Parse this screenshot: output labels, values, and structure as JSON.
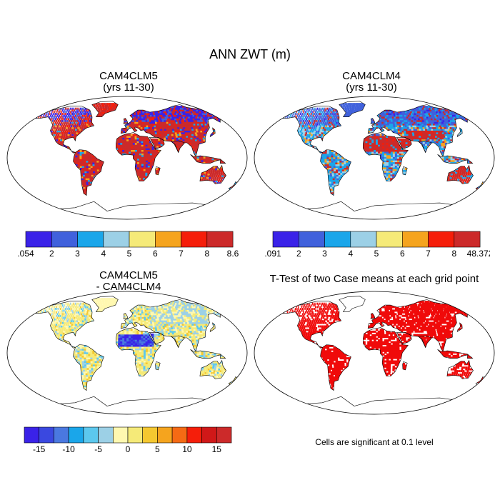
{
  "title": "ANN ZWT (m)",
  "panels": [
    {
      "title": "CAM4CLM5",
      "subtitle": "(yrs 11-30)",
      "colors": [
        "#3a22e8",
        "#4061dc",
        "#1aa6ea",
        "#9cd0e6",
        "#f5ea78",
        "#f5a41e",
        "#f51e0a",
        "#cc2a2a"
      ],
      "colorbar_labels": [
        ".054",
        "2",
        "3",
        "4",
        "5",
        "6",
        "7",
        "8",
        "8.6"
      ]
    },
    {
      "title": "CAM4CLM4",
      "subtitle": "(yrs 11-30)",
      "colors": [
        "#3a22e8",
        "#4061dc",
        "#1aa6ea",
        "#9cd0e6",
        "#f5ea78",
        "#f5a41e",
        "#f51e0a",
        "#cc2a2a"
      ],
      "colorbar_labels": [
        ".091",
        "2",
        "3",
        "4",
        "5",
        "6",
        "7",
        "8",
        "48.372"
      ]
    },
    {
      "title": "CAM4CLM5",
      "subtitle": "- CAM4CLM4",
      "colors": [
        "#3a22e8",
        "#3a48e0",
        "#4a78e0",
        "#1aa6ea",
        "#5cc8ee",
        "#9cd0e6",
        "#fff8b0",
        "#f5ea78",
        "#f5c830",
        "#f5a41e",
        "#f56a14",
        "#f51e0a",
        "#d01818",
        "#cc2a2a"
      ],
      "colorbar_labels": [
        "-15",
        "-10",
        "-5",
        "0",
        "5",
        "10",
        "15"
      ]
    },
    {
      "title": "T-Test of two Case means at each grid point",
      "subtitle": "",
      "footnote": "Cells are significant at 0.1 level",
      "colors": [
        "#f00a0a"
      ]
    }
  ]
}
